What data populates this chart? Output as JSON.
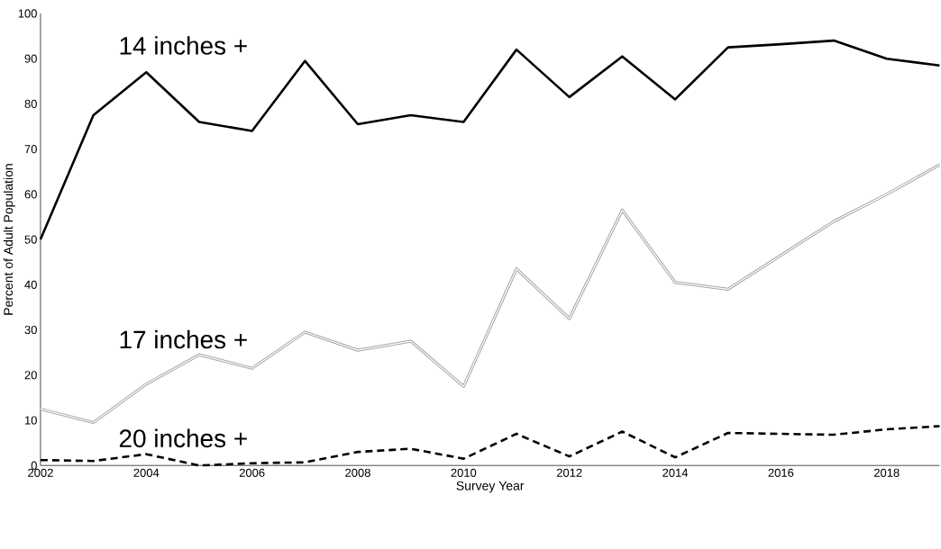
{
  "chart_data": {
    "type": "line",
    "xlabel": "Survey Year",
    "ylabel": "Percent of Adult Population",
    "x": [
      2002,
      2003,
      2004,
      2005,
      2006,
      2007,
      2008,
      2009,
      2010,
      2011,
      2012,
      2013,
      2014,
      2015,
      2016,
      2017,
      2018,
      2019
    ],
    "series": [
      {
        "name": "14 inches +",
        "color": "#000000",
        "line_style": "solid",
        "values": [
          50,
          77.5,
          87,
          76,
          74,
          89.5,
          75.5,
          77.5,
          76,
          92,
          81.5,
          90.5,
          81,
          92.5,
          93.2,
          94,
          90,
          88.5
        ]
      },
      {
        "name": "17 inches +",
        "color": "#a6a6a6",
        "line_style": "solid",
        "values": [
          12.5,
          9.5,
          18,
          24.5,
          21.5,
          29.5,
          25.5,
          27.5,
          17.5,
          43.5,
          32.5,
          56.5,
          40.5,
          39,
          46.5,
          54,
          60,
          66.5
        ]
      },
      {
        "name": "20 inches +",
        "color": "#000000",
        "line_style": "dashed",
        "values": [
          1.2,
          1,
          2.5,
          0,
          0.5,
          0.7,
          3,
          3.7,
          1.5,
          7,
          2,
          7.5,
          1.8,
          7.2,
          7,
          6.8,
          8,
          8.7
        ]
      }
    ],
    "xlim": [
      2002,
      2019
    ],
    "xticks": [
      2002,
      2004,
      2006,
      2008,
      2010,
      2012,
      2014,
      2016,
      2018
    ],
    "ylim": [
      0,
      100
    ],
    "yticks": [
      0,
      10,
      20,
      30,
      40,
      50,
      60,
      70,
      80,
      90,
      100
    ],
    "grid": false,
    "marker": "none"
  }
}
